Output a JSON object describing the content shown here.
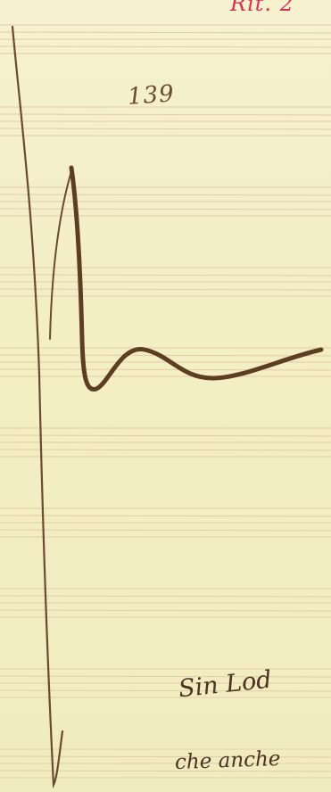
{
  "manuscript": {
    "folio_number": "139",
    "top_margin_note": "Rit. 2",
    "lyric_lines": [
      "Sin Lod",
      "che anche"
    ]
  },
  "colors": {
    "paper": "#f4efc6",
    "staff_line": "#e2c9a6",
    "ink": "#5a3f28",
    "red_ink": "#d4305a"
  }
}
